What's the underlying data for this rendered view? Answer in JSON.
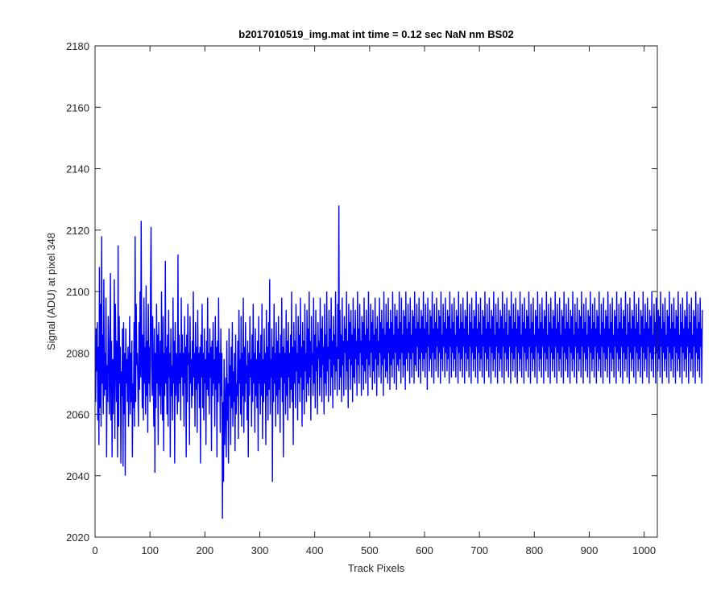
{
  "chart_data": {
    "type": "line",
    "title": "b2017010519_img.mat int time = 0.12 sec  NaN nm BS02",
    "xlabel": "Track Pixels",
    "ylabel": "Signal (ADU) at pixel 348",
    "xlim": [
      0,
      1024
    ],
    "ylim": [
      2020,
      2180
    ],
    "xticks": [
      0,
      100,
      200,
      300,
      400,
      500,
      600,
      700,
      800,
      900,
      1000
    ],
    "yticks": [
      2020,
      2040,
      2060,
      2080,
      2100,
      2120,
      2140,
      2160,
      2180
    ],
    "grid": false,
    "line_color": "#0000ff",
    "series": [
      {
        "x_start": 1,
        "x_step": 1,
        "values": [
          2064,
          2088,
          2074,
          2090,
          2058,
          2082,
          2050,
          2108,
          2062,
          2096,
          2056,
          2118,
          2070,
          2086,
          2060,
          2104,
          2066,
          2080,
          2068,
          2098,
          2046,
          2076,
          2064,
          2092,
          2084,
          2060,
          2072,
          2106,
          2058,
          2084,
          2046,
          2078,
          2060,
          2072,
          2104,
          2052,
          2096,
          2080,
          2064,
          2084,
          2046,
          2115,
          2056,
          2092,
          2070,
          2082,
          2044,
          2074,
          2066,
          2088,
          2043,
          2090,
          2060,
          2080,
          2040,
          2088,
          2070,
          2078,
          2064,
          2082,
          2056,
          2074,
          2092,
          2060,
          2080,
          2064,
          2084,
          2046,
          2070,
          2062,
          2090,
          2056,
          2118,
          2064,
          2096,
          2076,
          2080,
          2070,
          2056,
          2090,
          2068,
          2100,
          2072,
          2123,
          2078,
          2062,
          2086,
          2058,
          2098,
          2070,
          2082,
          2060,
          2102,
          2066,
          2084,
          2054,
          2096,
          2070,
          2082,
          2064,
          2100,
          2121,
          2076,
          2066,
          2092,
          2072,
          2056,
          2088,
          2041,
          2080,
          2062,
          2096,
          2070,
          2086,
          2050,
          2090,
          2074,
          2066,
          2084,
          2060,
          2100,
          2076,
          2058,
          2092,
          2048,
          2080,
          2066,
          2110,
          2070,
          2082,
          2060,
          2086,
          2056,
          2094,
          2072,
          2080,
          2046,
          2088,
          2066,
          2076,
          2058,
          2098,
          2070,
          2084,
          2044,
          2090,
          2066,
          2080,
          2074,
          2060,
          2112,
          2064,
          2086,
          2070,
          2080,
          2058,
          2098,
          2072,
          2086,
          2066,
          2080,
          2056,
          2092,
          2070,
          2082,
          2046,
          2086,
          2064,
          2096,
          2076,
          2080,
          2050,
          2092,
          2070,
          2078,
          2062,
          2084,
          2066,
          2100,
          2072,
          2080,
          2056,
          2090,
          2068,
          2082,
          2054,
          2094,
          2070,
          2080,
          2062,
          2082,
          2044,
          2086,
          2072,
          2096,
          2062,
          2080,
          2058,
          2088,
          2070,
          2078,
          2050,
          2084,
          2068,
          2098,
          2066,
          2080,
          2060,
          2088,
          2072,
          2082,
          2048,
          2084,
          2066,
          2090,
          2070,
          2078,
          2056,
          2092,
          2068,
          2082,
          2046,
          2084,
          2064,
          2098,
          2070,
          2080,
          2054,
          2088,
          2066,
          2080,
          2026,
          2064,
          2038,
          2078,
          2050,
          2062,
          2072,
          2046,
          2084,
          2058,
          2070,
          2044,
          2088,
          2066,
          2076,
          2050,
          2082,
          2062,
          2090,
          2056,
          2074,
          2064,
          2080,
          2048,
          2086,
          2060,
          2070,
          2066,
          2084,
          2052,
          2094,
          2070,
          2078,
          2060,
          2092,
          2056,
          2080,
          2066,
          2098,
          2054,
          2082,
          2064,
          2090,
          2070,
          2076,
          2058,
          2084,
          2046,
          2080,
          2066,
          2092,
          2072,
          2078,
          2056,
          2086,
          2064,
          2096,
          2070,
          2080,
          2054,
          2088,
          2066,
          2078,
          2062,
          2084,
          2048,
          2092,
          2070,
          2080,
          2060,
          2086,
          2066,
          2096,
          2052,
          2078,
          2064,
          2088,
          2070,
          2080,
          2050,
          2094,
          2066,
          2082,
          2058,
          2090,
          2068,
          2104,
          2060,
          2078,
          2072,
          2088,
          2038,
          2082,
          2064,
          2096,
          2070,
          2080,
          2056,
          2090,
          2066,
          2084,
          2060,
          2092,
          2068,
          2080,
          2054,
          2086,
          2072,
          2098,
          2064,
          2082,
          2046,
          2088,
          2070,
          2080,
          2060,
          2094,
          2066,
          2084,
          2058,
          2090,
          2072,
          2080,
          2062,
          2086,
          2068,
          2100,
          2064,
          2082,
          2050,
          2090,
          2070,
          2084,
          2062,
          2096,
          2074,
          2080,
          2058,
          2092,
          2070,
          2086,
          2064,
          2098,
          2072,
          2082,
          2056,
          2090,
          2068,
          2084,
          2060,
          2096,
          2074,
          2080,
          2064,
          2094,
          2070,
          2088,
          2066,
          2100,
          2072,
          2084,
          2058,
          2092,
          2076,
          2080,
          2066,
          2098,
          2070,
          2086,
          2062,
          2094,
          2074,
          2082,
          2060,
          2090,
          2078,
          2084,
          2066,
          2098,
          2072,
          2088,
          2064,
          2092,
          2076,
          2082,
          2060,
          2096,
          2070,
          2086,
          2066,
          2100,
          2074,
          2082,
          2064,
          2094,
          2078,
          2088,
          2066,
          2098,
          2072,
          2084,
          2062,
          2092,
          2076,
          2086,
          2068,
          2100,
          2074,
          2082,
          2066,
          2096,
          2078,
          2128,
          2068,
          2094,
          2072,
          2086,
          2064,
          2098,
          2076,
          2084,
          2066,
          2092,
          2080,
          2088,
          2068,
          2100,
          2074,
          2084,
          2062,
          2096,
          2078,
          2090,
          2068,
          2094,
          2076,
          2086,
          2064,
          2098,
          2072,
          2088,
          2070,
          2094,
          2078,
          2084,
          2066,
          2100,
          2076,
          2088,
          2070,
          2096,
          2080,
          2084,
          2066,
          2092,
          2076,
          2090,
          2068,
          2098,
          2074,
          2086,
          2070,
          2094,
          2078,
          2088,
          2066,
          2100,
          2076,
          2084,
          2072,
          2096,
          2080,
          2090,
          2068,
          2094,
          2074,
          2086,
          2070,
          2098,
          2078,
          2088,
          2066,
          2092,
          2076,
          2084,
          2072,
          2098,
          2080,
          2090,
          2070,
          2094,
          2076,
          2088,
          2066,
          2100,
          2078,
          2086,
          2072,
          2096,
          2074,
          2090,
          2070,
          2098,
          2080,
          2088,
          2068,
          2094,
          2076,
          2090,
          2072,
          2100,
          2078,
          2086,
          2070,
          2096,
          2080,
          2092,
          2068,
          2094,
          2076,
          2088,
          2074,
          2100,
          2078,
          2090,
          2070,
          2098,
          2080,
          2086,
          2072,
          2094,
          2076,
          2092,
          2068,
          2100,
          2078,
          2088,
          2074,
          2096,
          2080,
          2090,
          2070,
          2098,
          2078,
          2086,
          2072,
          2094,
          2080,
          2092,
          2070,
          2100,
          2076,
          2088,
          2074,
          2096,
          2082,
          2090,
          2072,
          2098,
          2078,
          2088,
          2070,
          2094,
          2080,
          2092,
          2074,
          2100,
          2078,
          2088,
          2072,
          2096,
          2080,
          2090,
          2068,
          2098,
          2082,
          2086,
          2074,
          2094,
          2078,
          2092,
          2072,
          2100,
          2080,
          2088,
          2070,
          2096,
          2078,
          2090,
          2074,
          2098,
          2082,
          2088,
          2072,
          2094,
          2080,
          2092,
          2070,
          2100,
          2078,
          2086,
          2074,
          2096,
          2082,
          2090,
          2072,
          2098,
          2080,
          2088,
          2074,
          2094,
          2078,
          2092,
          2070,
          2100,
          2082,
          2088,
          2072,
          2096,
          2080,
          2090,
          2074,
          2098,
          2078,
          2086,
          2072,
          2094,
          2082,
          2092,
          2070,
          2100,
          2080,
          2088,
          2074,
          2096,
          2078,
          2090,
          2072,
          2098,
          2082,
          2088,
          2070,
          2094,
          2080,
          2092,
          2074,
          2100,
          2078,
          2086,
          2072,
          2096,
          2082,
          2090,
          2070,
          2098,
          2080,
          2088,
          2074,
          2094,
          2078,
          2092,
          2072,
          2100,
          2082,
          2088,
          2070,
          2096,
          2080,
          2090,
          2074,
          2098,
          2078,
          2086,
          2072,
          2094,
          2082,
          2092,
          2070,
          2100,
          2080,
          2088,
          2074,
          2096,
          2078,
          2090,
          2072,
          2098,
          2082,
          2088,
          2070,
          2094,
          2080,
          2092,
          2074,
          2100,
          2078,
          2086,
          2072,
          2096,
          2082,
          2090,
          2070,
          2098,
          2080,
          2088,
          2074,
          2094,
          2078,
          2092,
          2072,
          2100,
          2082,
          2088,
          2070,
          2096,
          2080,
          2090,
          2074,
          2098,
          2078,
          2086,
          2072,
          2094,
          2082,
          2092,
          2070,
          2100,
          2080,
          2088,
          2074,
          2096,
          2078,
          2090,
          2072,
          2098,
          2082,
          2088,
          2070,
          2094,
          2080,
          2092,
          2074,
          2100,
          2078,
          2086,
          2072,
          2096,
          2082,
          2090,
          2070,
          2098,
          2080,
          2088,
          2074,
          2094,
          2078,
          2092,
          2072,
          2100,
          2082,
          2088,
          2070,
          2096,
          2080,
          2090,
          2074,
          2098,
          2078,
          2086,
          2072,
          2094,
          2082,
          2092,
          2070,
          2100,
          2080,
          2088,
          2074,
          2096,
          2078,
          2090,
          2072,
          2098,
          2082,
          2088,
          2070,
          2094,
          2080,
          2092,
          2074,
          2100,
          2078,
          2086,
          2072,
          2096,
          2082,
          2090,
          2070,
          2098,
          2080,
          2088,
          2074,
          2094,
          2078,
          2092,
          2072,
          2100,
          2082,
          2088,
          2070,
          2096,
          2080,
          2090,
          2074,
          2098,
          2078,
          2086,
          2072,
          2094,
          2082,
          2092,
          2070,
          2100,
          2080,
          2088,
          2074,
          2096,
          2078,
          2090,
          2072,
          2098,
          2082,
          2088,
          2070,
          2094,
          2080,
          2092,
          2074,
          2100,
          2078,
          2086,
          2072,
          2096,
          2082,
          2090,
          2070,
          2098,
          2080,
          2088,
          2074,
          2094,
          2078,
          2092,
          2072,
          2100,
          2082,
          2088,
          2070,
          2096,
          2080,
          2090,
          2074,
          2098,
          2078,
          2086,
          2072,
          2094,
          2082,
          2092,
          2070,
          2100,
          2080,
          2088,
          2074,
          2096,
          2078,
          2090,
          2072,
          2098,
          2082,
          2088,
          2070,
          2094,
          2080,
          2092,
          2074,
          2100,
          2078,
          2086,
          2072,
          2096,
          2082,
          2090,
          2070,
          2098,
          2080,
          2088,
          2074,
          2094,
          2078,
          2092,
          2072,
          2100,
          2082,
          2088,
          2070,
          2096,
          2080,
          2090,
          2074,
          2098,
          2078,
          2086,
          2072,
          2094,
          2082,
          2092,
          2070,
          2100,
          2080,
          2088,
          2074,
          2096,
          2078,
          2090,
          2072,
          2098,
          2082,
          2088,
          2070,
          2094,
          2080,
          2092,
          2074,
          2100,
          2078,
          2086,
          2072,
          2096,
          2082,
          2090,
          2070,
          2098,
          2080,
          2088,
          2074,
          2094,
          2078,
          2092,
          2072,
          2100,
          2082,
          2088,
          2070,
          2096,
          2080,
          2090,
          2074,
          2098,
          2078,
          2086,
          2072,
          2094,
          2082,
          2092,
          2070,
          2100,
          2080,
          2088,
          2074,
          2096,
          2078,
          2090,
          2072,
          2098,
          2082,
          2088,
          2070,
          2094,
          2080,
          2092,
          2074,
          2100,
          2078,
          2086,
          2072,
          2096,
          2082,
          2090,
          2070,
          2098,
          2080,
          2088,
          2074,
          2094,
          2078,
          2092,
          2072,
          2100,
          2082,
          2088,
          2070,
          2096,
          2080,
          2090,
          2074,
          2098,
          2078,
          2086,
          2072,
          2094,
          2082,
          2092,
          2070,
          2100,
          2080,
          2088,
          2074,
          2096,
          2078,
          2090,
          2072,
          2098,
          2082,
          2088,
          2070,
          2094,
          2080,
          2092,
          2074,
          2100,
          2078,
          2086,
          2072,
          2096,
          2082,
          2090,
          2070,
          2098,
          2080,
          2088,
          2074,
          2094,
          2078,
          2092,
          2072,
          2100,
          2082,
          2088,
          2070,
          2096,
          2080,
          2090,
          2074,
          2098,
          2078,
          2086,
          2072,
          2094,
          2082,
          2092,
          2070,
          2100,
          2080,
          2088,
          2074,
          2096,
          2078,
          2090,
          2072,
          2098,
          2082,
          2088,
          2070,
          2094
        ]
      }
    ]
  }
}
